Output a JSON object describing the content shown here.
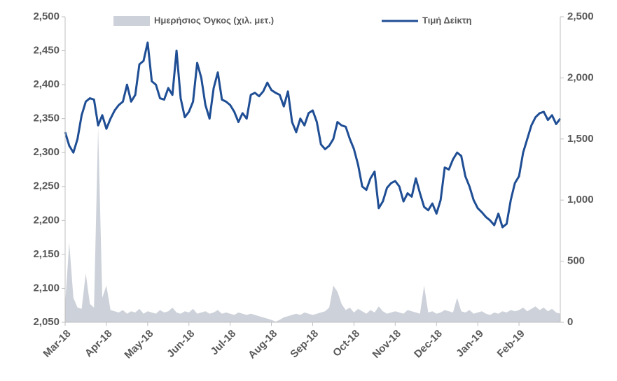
{
  "chart_data": {
    "type": "line",
    "categories": [
      "Mar-18",
      null,
      null,
      null,
      null,
      null,
      null,
      null,
      null,
      null,
      "Apr-18",
      null,
      null,
      null,
      null,
      null,
      null,
      null,
      null,
      null,
      "May-18",
      null,
      null,
      null,
      null,
      null,
      null,
      null,
      null,
      null,
      "Jun-18",
      null,
      null,
      null,
      null,
      null,
      null,
      null,
      null,
      null,
      "Jul-18",
      null,
      null,
      null,
      null,
      null,
      null,
      null,
      null,
      null,
      "Aug-18",
      null,
      null,
      null,
      null,
      null,
      null,
      null,
      null,
      null,
      "Sep-18",
      null,
      null,
      null,
      null,
      null,
      null,
      null,
      null,
      null,
      "Oct-18",
      null,
      null,
      null,
      null,
      null,
      null,
      null,
      null,
      null,
      "Nov-18",
      null,
      null,
      null,
      null,
      null,
      null,
      null,
      null,
      null,
      "Dec-18",
      null,
      null,
      null,
      null,
      null,
      null,
      null,
      null,
      null,
      "Jan-19",
      null,
      null,
      null,
      null,
      null,
      null,
      null,
      null,
      null,
      "Feb-19",
      null,
      null,
      null,
      null,
      null,
      null,
      null,
      null,
      null,
      null
    ],
    "series": [
      {
        "name": "Ημερήσιος Όγκος (χιλ. μετ.)",
        "type": "area",
        "axis": "y2",
        "color": "#cdd1d9",
        "values": [
          150,
          650,
          200,
          120,
          110,
          400,
          150,
          120,
          1600,
          200,
          300,
          100,
          90,
          80,
          100,
          70,
          90,
          80,
          110,
          70,
          90,
          80,
          70,
          100,
          80,
          90,
          120,
          80,
          70,
          90,
          80,
          110,
          70,
          80,
          90,
          70,
          80,
          100,
          70,
          80,
          70,
          60,
          80,
          70,
          60,
          70,
          60,
          50,
          40,
          30,
          20,
          5,
          20,
          40,
          50,
          60,
          70,
          60,
          80,
          70,
          60,
          70,
          80,
          90,
          120,
          300,
          250,
          150,
          100,
          120,
          80,
          110,
          90,
          70,
          100,
          80,
          130,
          90,
          70,
          80,
          90,
          80,
          70,
          100,
          90,
          80,
          70,
          300,
          80,
          90,
          70,
          80,
          100,
          90,
          80,
          200,
          90,
          80,
          100,
          70,
          80,
          90,
          70,
          60,
          80,
          70,
          90,
          80,
          100,
          90,
          100,
          120,
          90,
          110,
          130,
          100,
          120,
          90,
          110,
          80,
          70
        ]
      },
      {
        "name": "Τιμή Δείκτη",
        "type": "line",
        "axis": "y",
        "color": "#1f4e94",
        "values": [
          2330,
          2310,
          2300,
          2320,
          2355,
          2375,
          2380,
          2378,
          2340,
          2355,
          2335,
          2350,
          2362,
          2370,
          2375,
          2400,
          2375,
          2385,
          2430,
          2435,
          2462,
          2405,
          2400,
          2380,
          2378,
          2395,
          2385,
          2450,
          2380,
          2352,
          2360,
          2375,
          2432,
          2410,
          2370,
          2350,
          2395,
          2418,
          2378,
          2375,
          2370,
          2360,
          2345,
          2358,
          2350,
          2385,
          2388,
          2383,
          2390,
          2403,
          2392,
          2388,
          2385,
          2368,
          2390,
          2345,
          2330,
          2350,
          2340,
          2358,
          2362,
          2345,
          2312,
          2305,
          2310,
          2320,
          2345,
          2340,
          2338,
          2320,
          2305,
          2282,
          2250,
          2245,
          2262,
          2272,
          2218,
          2228,
          2248,
          2255,
          2258,
          2250,
          2228,
          2240,
          2235,
          2262,
          2240,
          2220,
          2215,
          2225,
          2210,
          2230,
          2278,
          2275,
          2290,
          2300,
          2295,
          2265,
          2250,
          2230,
          2218,
          2212,
          2205,
          2200,
          2193,
          2210,
          2190,
          2195,
          2230,
          2255,
          2265,
          2300,
          2320,
          2340,
          2352,
          2358,
          2360,
          2348,
          2355,
          2342,
          2350
        ]
      }
    ],
    "ylim": [
      2050,
      2500
    ],
    "yticks": [
      {
        "value": 2050,
        "label": "2,050"
      },
      {
        "value": 2100,
        "label": "2,100"
      },
      {
        "value": 2150,
        "label": "2,150"
      },
      {
        "value": 2200,
        "label": "2,200"
      },
      {
        "value": 2250,
        "label": "2,250"
      },
      {
        "value": 2300,
        "label": "2,300"
      },
      {
        "value": 2350,
        "label": "2,350"
      },
      {
        "value": 2400,
        "label": "2,400"
      },
      {
        "value": 2450,
        "label": "2,450"
      },
      {
        "value": 2500,
        "label": "2,500"
      }
    ],
    "y2lim": [
      0,
      2500
    ],
    "y2ticks": [
      0,
      500,
      {
        "value": 1000,
        "label": "1,000"
      },
      {
        "value": 1500,
        "label": "1,500"
      },
      {
        "value": 2000,
        "label": "2,000"
      },
      {
        "value": 2500,
        "label": "2,500"
      }
    ],
    "legend": "top"
  }
}
